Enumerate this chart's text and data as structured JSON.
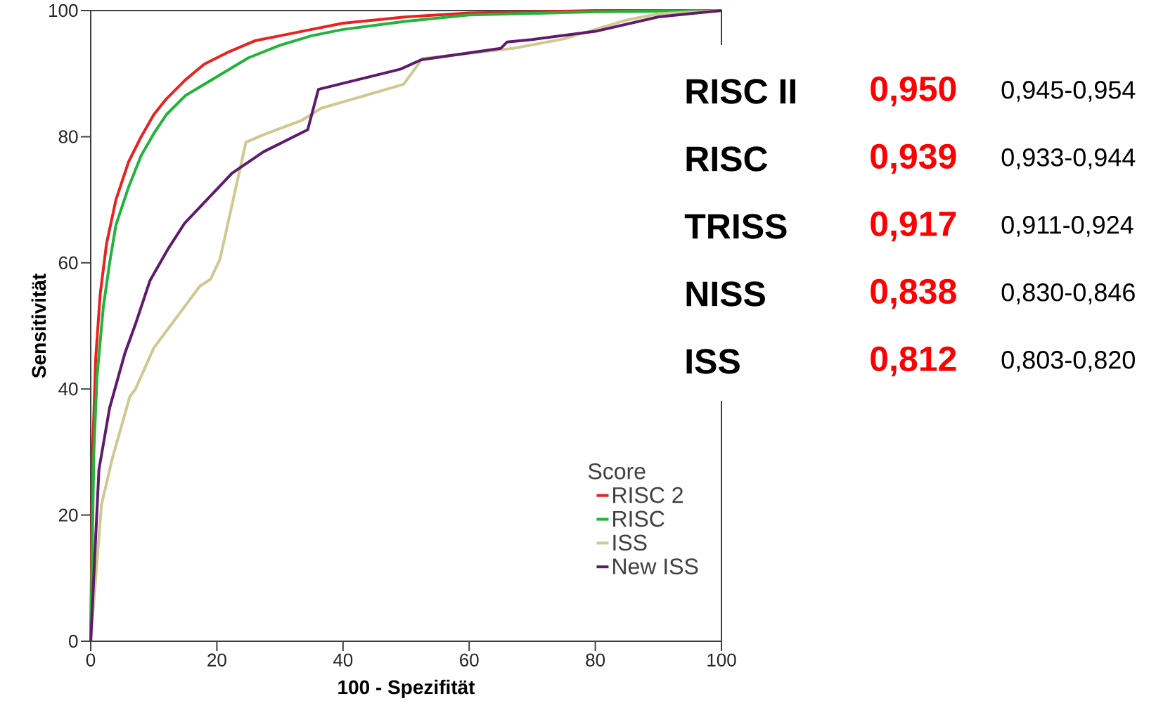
{
  "chart_data": {
    "type": "line",
    "xlabel": "100 - Spezifität",
    "ylabel": "Sensitivität",
    "legend_title": "Score",
    "legend": "bottom right",
    "grid": false,
    "marker": "none",
    "line_style": "solid",
    "xlim": [
      0,
      100
    ],
    "ylim": [
      0,
      100
    ],
    "xticks": [
      0,
      20,
      40,
      60,
      80,
      100
    ],
    "yticks": [
      0,
      20,
      40,
      60,
      80,
      100
    ],
    "series": [
      {
        "name": "RISC 2",
        "color": "#e8231f",
        "x": [
          0,
          0.3,
          0.8,
          1.5,
          2.5,
          4,
          6,
          8,
          10,
          12,
          15,
          18,
          22,
          26,
          30,
          35,
          40,
          50,
          60,
          80,
          100
        ],
        "values": [
          0,
          30,
          45,
          55,
          63,
          70,
          76,
          80,
          83.5,
          86,
          89,
          91.5,
          93.5,
          95.2,
          96,
          97,
          98,
          99,
          99.6,
          100,
          100
        ]
      },
      {
        "name": "RISC",
        "color": "#22b33a",
        "x": [
          0,
          0.5,
          1,
          2,
          3,
          4,
          6,
          8,
          10,
          12,
          15,
          20,
          25,
          30,
          35,
          40,
          50,
          60,
          80,
          100
        ],
        "values": [
          0,
          30,
          42,
          53,
          60,
          66,
          72,
          77,
          80.5,
          83.5,
          86.5,
          89.5,
          92.5,
          94.5,
          96,
          97,
          98.3,
          99.3,
          99.8,
          100
        ]
      },
      {
        "name": "ISS",
        "color": "#cfc88f",
        "x": [
          0,
          1.7,
          3.4,
          6.2,
          7.1,
          10,
          17.3,
          19,
          20.5,
          24.6,
          27.6,
          33.5,
          36.5,
          49.6,
          52.6,
          67,
          75,
          85,
          90,
          100
        ],
        "values": [
          0,
          21.6,
          28.9,
          38.8,
          40,
          46.5,
          56.3,
          57.4,
          60.6,
          79.1,
          80.4,
          82.6,
          84.5,
          88.3,
          92.4,
          94,
          95.5,
          98.5,
          99.5,
          100
        ]
      },
      {
        "name": "New ISS",
        "color": "#5f1a6e",
        "x": [
          0,
          1.3,
          3,
          5.4,
          7.1,
          9.4,
          12.2,
          14.9,
          22.4,
          27.4,
          34.4,
          36.1,
          49.1,
          52.4,
          65,
          66,
          70,
          80,
          90,
          100
        ],
        "values": [
          0,
          27.2,
          37,
          45.6,
          50.3,
          57.2,
          62.1,
          66.3,
          74.2,
          77.6,
          81.1,
          87.5,
          90.7,
          92.2,
          94,
          95,
          95.4,
          96.7,
          99,
          100
        ]
      }
    ],
    "annotations": [
      "RISC II",
      "0,950",
      "0,945-0,954",
      "RISC",
      "0,939",
      "0,933-0,944",
      "TRISS",
      "0,917",
      "0,911-0,924",
      "NISS",
      "0,838",
      "0,830-0,846",
      "ISS",
      "0,812",
      "0,803-0,820"
    ]
  }
}
